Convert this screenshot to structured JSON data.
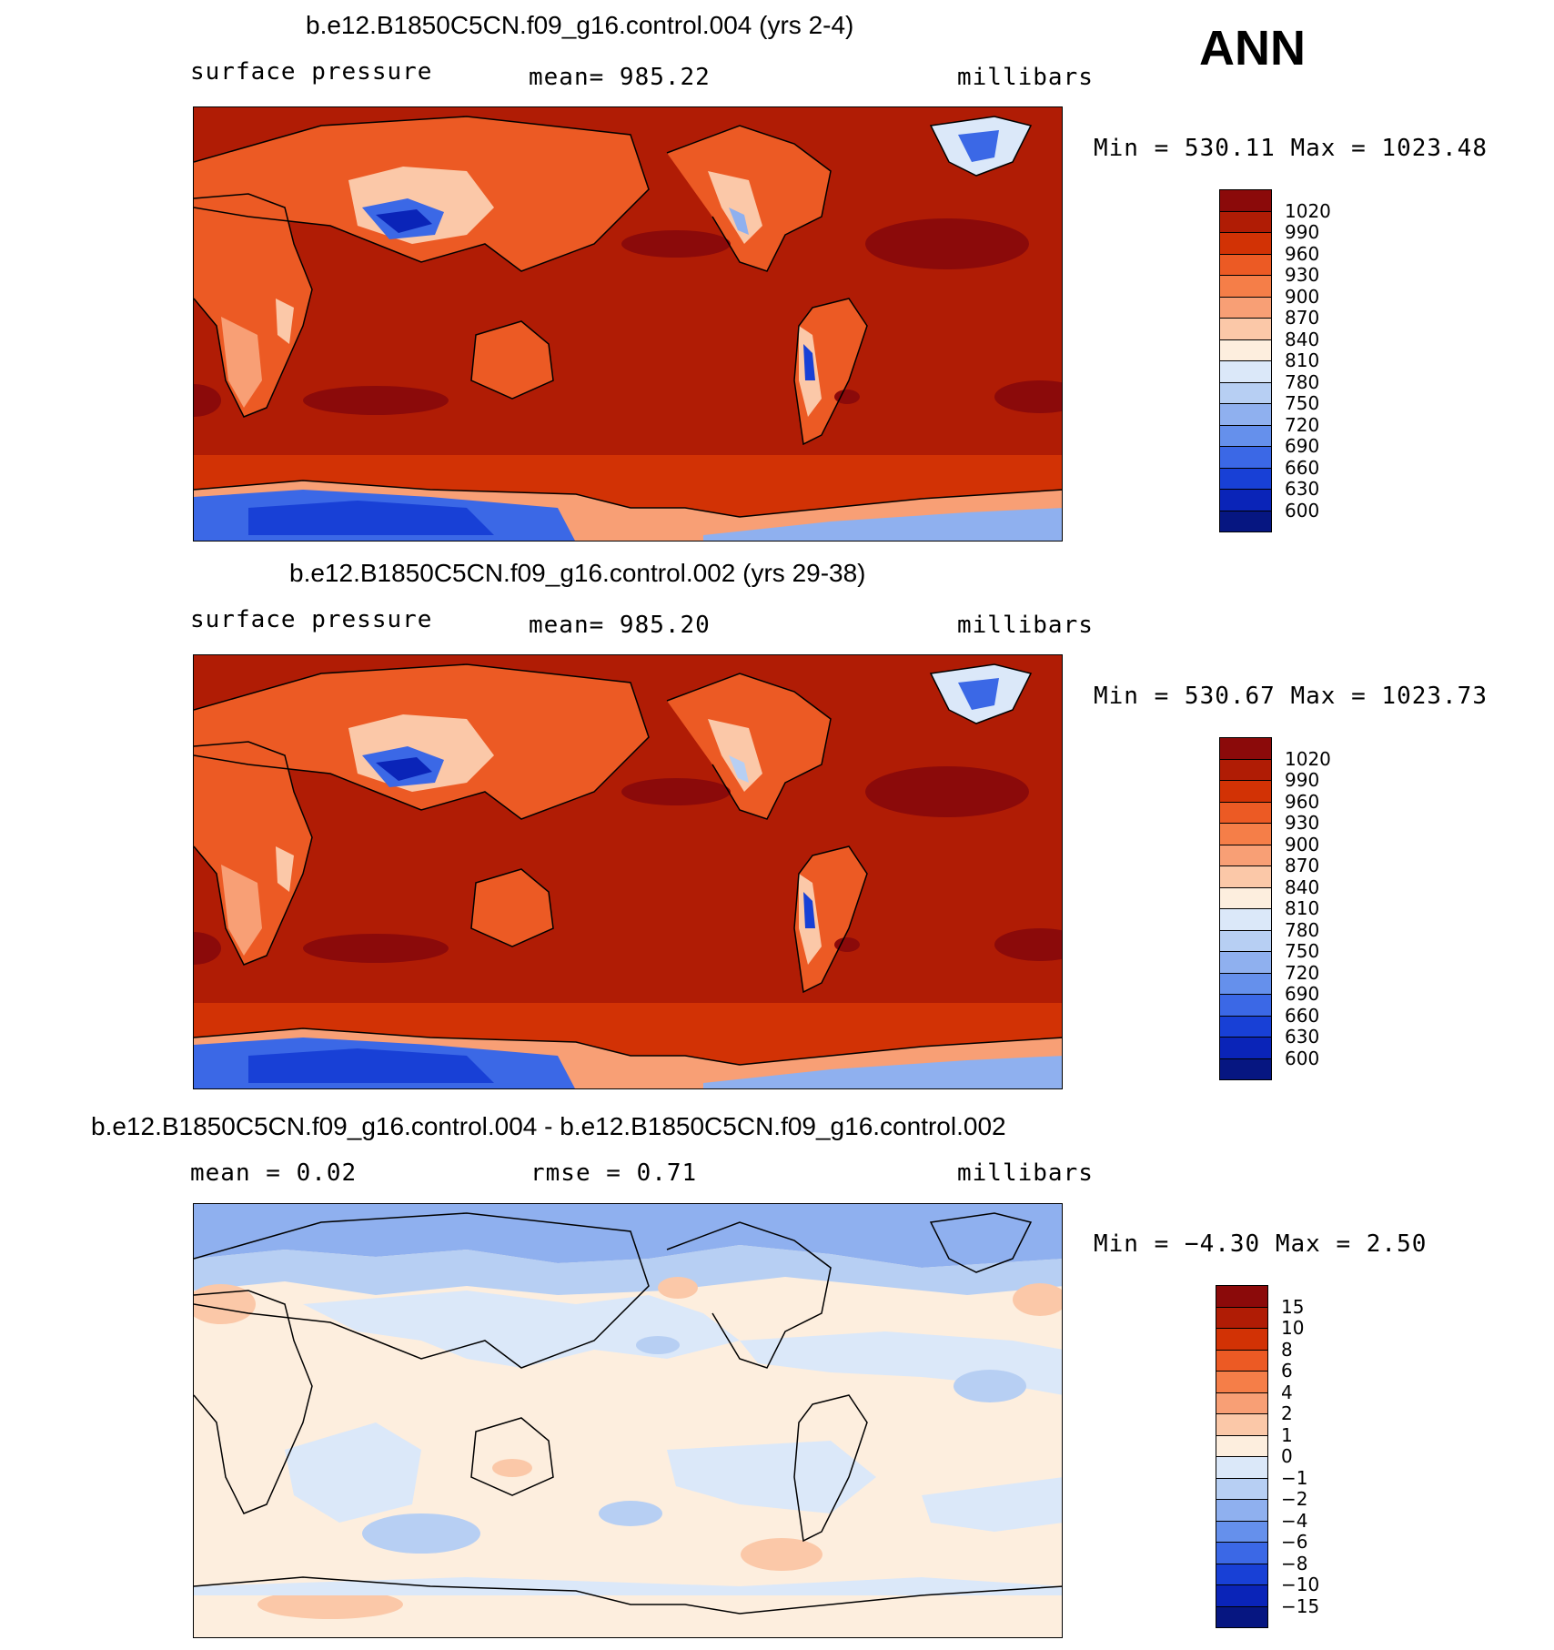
{
  "season": "ANN",
  "panels": [
    {
      "title": "b.e12.B1850C5CN.f09_g16.control.004 (yrs 2-4)",
      "left_text": "surface  pressure",
      "center_text": "mean=  985.22",
      "right_text": "millibars",
      "minmax_text": "Min  =  530.11  Max  =  1023.48",
      "colorbar": "abs"
    },
    {
      "title": "b.e12.B1850C5CN.f09_g16.control.002 (yrs 29-38)",
      "left_text": "surface  pressure",
      "center_text": "mean=  985.20",
      "right_text": "millibars",
      "minmax_text": "Min  =  530.67  Max  =  1023.73",
      "colorbar": "abs"
    },
    {
      "title": "b.e12.B1850C5CN.f09_g16.control.004 - b.e12.B1850C5CN.f09_g16.control.002",
      "left_text": "mean  =     0.02",
      "center_text": "rmse  =     0.71",
      "right_text": "millibars",
      "minmax_text": "Min  =    −4.30  Max  =      2.50",
      "colorbar": "diff"
    }
  ],
  "colorbars": {
    "abs": {
      "labels": [
        "1020",
        "990",
        "960",
        "930",
        "900",
        "870",
        "840",
        "810",
        "780",
        "750",
        "720",
        "690",
        "660",
        "630",
        "600"
      ],
      "colors": [
        "#8b0a0a",
        "#b01c05",
        "#d23205",
        "#ec5a24",
        "#f57e48",
        "#f89f75",
        "#fbc8a8",
        "#fdeede",
        "#dbe8f9",
        "#b7cff3",
        "#8fb0ef",
        "#6590ec",
        "#3b68e6",
        "#1840d6",
        "#0a24b8",
        "#061681"
      ]
    },
    "diff": {
      "labels": [
        "15",
        "10",
        "8",
        "6",
        "4",
        "2",
        "1",
        "0",
        "−1",
        "−2",
        "−4",
        "−6",
        "−8",
        "−10",
        "−15"
      ],
      "colors": [
        "#8b0a0a",
        "#b01c05",
        "#d23205",
        "#ec5a24",
        "#f57e48",
        "#f89f75",
        "#fbc8a8",
        "#fdeede",
        "#dbe8f9",
        "#b7cff3",
        "#8fb0ef",
        "#6590ec",
        "#3b68e6",
        "#1840d6",
        "#0a24b8",
        "#061681"
      ]
    }
  }
}
